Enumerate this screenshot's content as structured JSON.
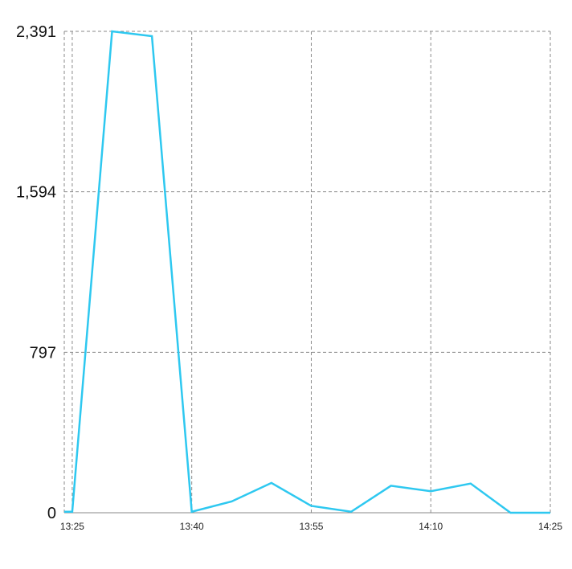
{
  "chart_data": {
    "type": "line",
    "title": "",
    "xlabel": "",
    "ylabel": "",
    "grid": true,
    "legend": "none",
    "x_ticks": [
      "13:25",
      "13:40",
      "13:55",
      "14:10",
      "14:25"
    ],
    "y_ticks": [
      "0",
      "797",
      "1,594",
      "2,391"
    ],
    "ylim": [
      0,
      2391
    ],
    "xlim": [
      "13:24",
      "14:25"
    ],
    "series": [
      {
        "color": "#2ec8f0",
        "x": [
          "13:24",
          "13:25",
          "13:30",
          "13:35",
          "13:40",
          "13:45",
          "13:50",
          "13:55",
          "14:00",
          "14:05",
          "14:10",
          "14:15",
          "14:20",
          "14:25"
        ],
        "values": [
          5,
          5,
          2391,
          2367,
          5,
          56,
          148,
          34,
          5,
          134,
          107,
          145,
          0,
          0
        ]
      }
    ]
  }
}
